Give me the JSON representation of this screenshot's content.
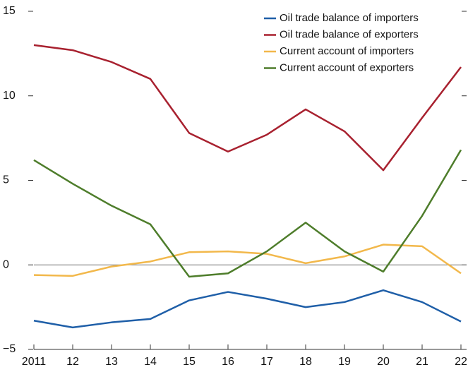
{
  "chart_data": {
    "type": "line",
    "categories": [
      "2011",
      "12",
      "13",
      "14",
      "15",
      "16",
      "17",
      "18",
      "19",
      "20",
      "21",
      "22"
    ],
    "series": [
      {
        "name": "Oil trade balance of importers",
        "color": "#1f5fa8",
        "values": [
          -3.3,
          -3.7,
          -3.4,
          -3.2,
          -2.1,
          -1.6,
          -2.0,
          -2.5,
          -2.2,
          -1.5,
          -2.2,
          -3.35
        ]
      },
      {
        "name": "Oil trade balance of exporters",
        "color": "#a8212f",
        "values": [
          13.0,
          12.7,
          12.0,
          11.0,
          7.8,
          6.7,
          7.7,
          9.2,
          7.9,
          5.6,
          8.7,
          11.7
        ]
      },
      {
        "name": "Current account of importers",
        "color": "#f2b84b",
        "values": [
          -0.6,
          -0.65,
          -0.1,
          0.2,
          0.75,
          0.8,
          0.65,
          0.1,
          0.5,
          1.2,
          1.1,
          -0.5
        ]
      },
      {
        "name": "Current account of exporters",
        "color": "#4e7d2b",
        "values": [
          6.2,
          4.8,
          3.5,
          2.4,
          -0.7,
          -0.5,
          0.8,
          2.5,
          0.8,
          -0.4,
          2.9,
          6.8
        ]
      }
    ],
    "ylim": [
      -5,
      15
    ],
    "yticks": [
      {
        "value": -5,
        "label": "−5"
      },
      0,
      5,
      10,
      15
    ]
  }
}
